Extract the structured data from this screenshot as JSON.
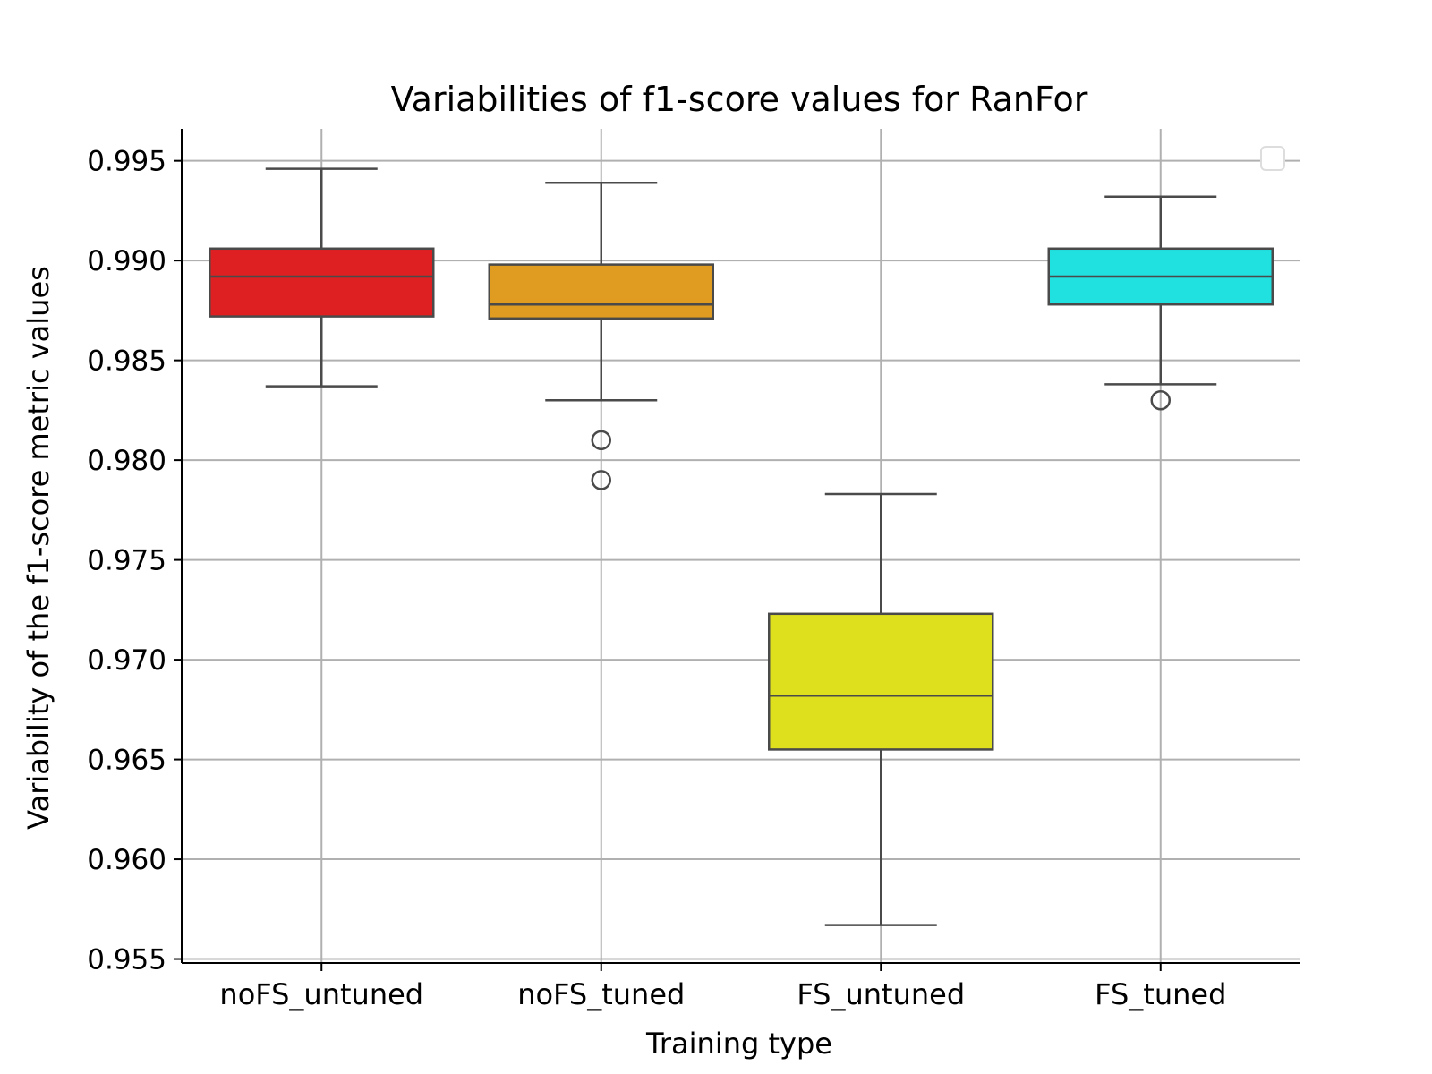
{
  "chart_data": {
    "type": "box",
    "title": "Variabilities of f1-score values for RanFor",
    "xlabel": "Training type",
    "ylabel": "Variability of the f1-score metric values",
    "ylim": [
      0.9548,
      0.9966
    ],
    "yticks": [
      0.955,
      0.96,
      0.965,
      0.97,
      0.975,
      0.98,
      0.985,
      0.99,
      0.995
    ],
    "ytick_labels": [
      "0.955",
      "0.960",
      "0.965",
      "0.970",
      "0.975",
      "0.980",
      "0.985",
      "0.990",
      "0.995"
    ],
    "grid": true,
    "legend": {
      "placement": "top-right",
      "entries": []
    },
    "categories": [
      "noFS_untuned",
      "noFS_tuned",
      "FS_untuned",
      "FS_tuned"
    ],
    "boxes": [
      {
        "category": "noFS_untuned",
        "color": "#de2023",
        "whisker_low": 0.9837,
        "q1": 0.9872,
        "median": 0.9892,
        "q3": 0.9906,
        "whisker_high": 0.9946,
        "outliers": []
      },
      {
        "category": "noFS_tuned",
        "color": "#e09c20",
        "whisker_low": 0.983,
        "q1": 0.9871,
        "median": 0.9878,
        "q3": 0.9898,
        "whisker_high": 0.9939,
        "outliers": [
          0.981,
          0.979
        ]
      },
      {
        "category": "FS_untuned",
        "color": "#dfe01d",
        "whisker_low": 0.9567,
        "q1": 0.9655,
        "median": 0.9682,
        "q3": 0.9723,
        "whisker_high": 0.9783,
        "outliers": []
      },
      {
        "category": "FS_tuned",
        "color": "#20e0e0",
        "whisker_low": 0.9838,
        "q1": 0.9878,
        "median": 0.9892,
        "q3": 0.9906,
        "whisker_high": 0.9932,
        "outliers": [
          0.983
        ]
      }
    ]
  }
}
